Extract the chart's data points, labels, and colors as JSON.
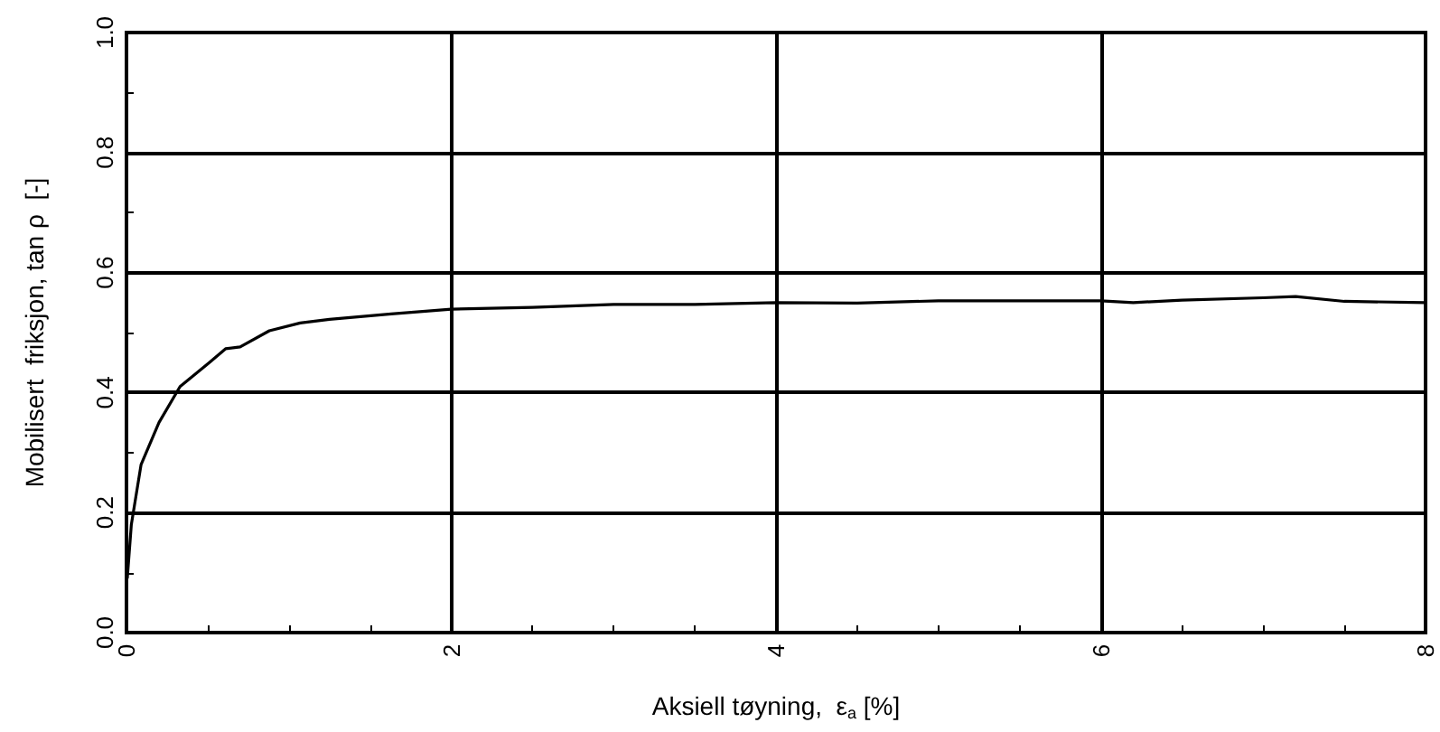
{
  "chart_data": {
    "type": "line",
    "xlabel": "Aksiell tøyning,  ε$_{a}$ [%]",
    "ylabel": "Mobilisert  friksjon, tan ρ  [-]",
    "xlim": [
      0,
      8
    ],
    "xticks": [
      0,
      2,
      4,
      6,
      8
    ],
    "ylim": [
      0,
      1
    ],
    "yticks": [
      {
        "value": 0,
        "label": "0.0"
      },
      0.2,
      0.4,
      0.6,
      0.8,
      {
        "value": 1,
        "label": "1.0"
      }
    ],
    "grid": true,
    "marker": "none",
    "line_style": "solid",
    "series": [
      {
        "color": "#000000",
        "x": [
          0.005,
          0.03,
          0.09,
          0.2,
          0.33,
          0.51,
          0.61,
          0.7,
          0.88,
          1.07,
          1.25,
          1.63,
          2.0,
          2.5,
          3.0,
          3.5,
          4.0,
          4.5,
          5.0,
          5.5,
          6.0,
          6.2,
          6.5,
          7.0,
          7.2,
          7.5,
          8.0
        ],
        "values": [
          0.09,
          0.18,
          0.28,
          0.35,
          0.41,
          0.45,
          0.473,
          0.476,
          0.503,
          0.516,
          0.522,
          0.531,
          0.539,
          0.542,
          0.547,
          0.547,
          0.55,
          0.549,
          0.553,
          0.553,
          0.553,
          0.55,
          0.554,
          0.558,
          0.56,
          0.552,
          0.55
        ]
      }
    ]
  }
}
